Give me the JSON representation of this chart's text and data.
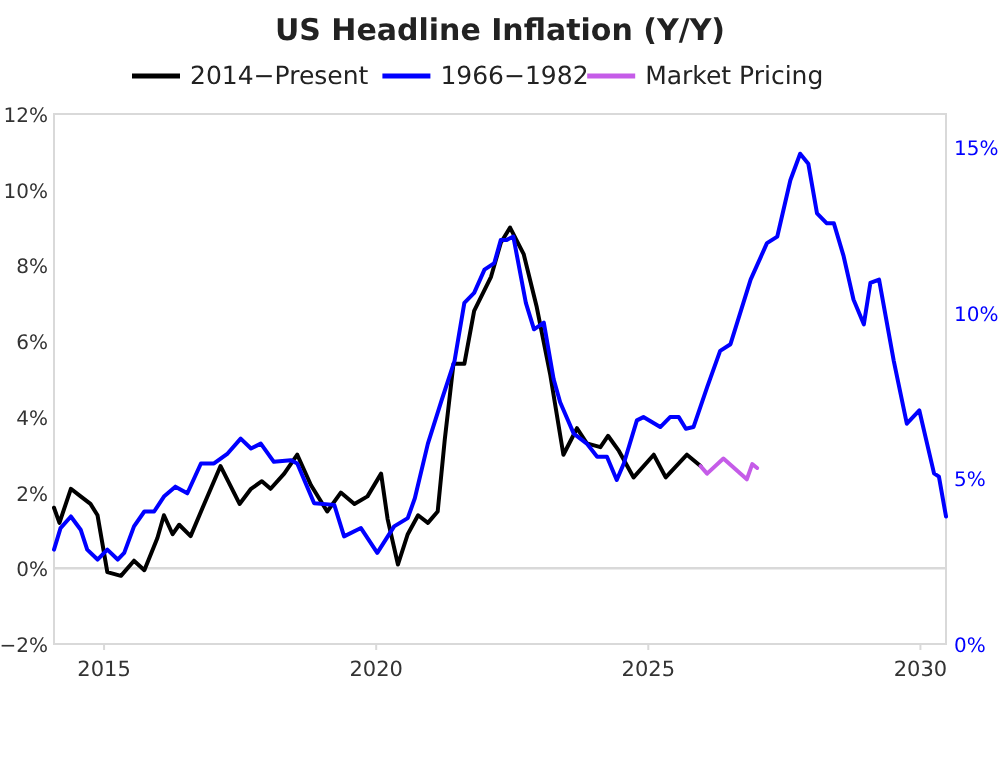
{
  "chart_data": {
    "type": "line",
    "title": "US Headline Inflation (Y/Y)",
    "legend": "top",
    "xlim": [
      2014.08,
      2030.47
    ],
    "xticks": [
      2015,
      2020,
      2025,
      2030
    ],
    "ylim": [
      -2,
      12
    ],
    "yticks": [
      {
        "value": -2,
        "label": "−2%"
      },
      {
        "value": 0,
        "label": "0%"
      },
      {
        "value": 2,
        "label": "2%"
      },
      {
        "value": 4,
        "label": "4%"
      },
      {
        "value": 6,
        "label": "6%"
      },
      {
        "value": 8,
        "label": "8%"
      },
      {
        "value": 10,
        "label": "10%"
      },
      {
        "value": 12,
        "label": "12%"
      }
    ],
    "y2lim": [
      0,
      16
    ],
    "y2ticks": [
      {
        "value": 0,
        "label": "0%"
      },
      {
        "value": 5,
        "label": "5%"
      },
      {
        "value": 10,
        "label": "10%"
      },
      {
        "value": 15,
        "label": "15%"
      }
    ],
    "ref_lines": [
      {
        "axis": "y",
        "value": 0,
        "color": "#d9d9d9"
      }
    ],
    "series": [
      {
        "name": "2014−Present",
        "color": "#000000",
        "x": [
          2014.08,
          2014.18,
          2014.39,
          2014.57,
          2014.75,
          2014.88,
          2015.06,
          2015.31,
          2015.55,
          2015.74,
          2015.98,
          2016.1,
          2016.26,
          2016.38,
          2016.59,
          2016.84,
          2017.14,
          2017.49,
          2017.7,
          2017.9,
          2018.06,
          2018.31,
          2018.55,
          2018.8,
          2019.1,
          2019.35,
          2019.6,
          2019.84,
          2020.09,
          2020.21,
          2020.4,
          2020.58,
          2020.77,
          2020.95,
          2021.13,
          2021.26,
          2021.42,
          2021.62,
          2021.8,
          2022.11,
          2022.29,
          2022.46,
          2022.71,
          2022.95,
          2023.2,
          2023.44,
          2023.69,
          2023.87,
          2024.12,
          2024.26,
          2024.46,
          2024.73,
          2025.1,
          2025.32,
          2025.71,
          2025.96
        ],
        "values": [
          1.6,
          1.2,
          2.1,
          1.9,
          1.7,
          1.4,
          -0.1,
          -0.2,
          0.2,
          -0.05,
          0.8,
          1.4,
          0.9,
          1.15,
          0.85,
          1.7,
          2.7,
          1.7,
          2.1,
          2.3,
          2.1,
          2.5,
          3.0,
          2.2,
          1.5,
          2.0,
          1.7,
          1.9,
          2.5,
          1.3,
          0.1,
          0.9,
          1.4,
          1.2,
          1.5,
          3.4,
          5.4,
          5.4,
          6.8,
          7.7,
          8.6,
          9.0,
          8.3,
          6.9,
          5.1,
          3.0,
          3.7,
          3.3,
          3.2,
          3.5,
          3.1,
          2.4,
          3.0,
          2.4,
          3.0,
          2.7
        ]
      },
      {
        "name": "1966−1982",
        "color": "#0000ff",
        "axis": "y2",
        "x": [
          2014.08,
          2014.2,
          2014.39,
          2014.57,
          2014.69,
          2014.88,
          2015.06,
          2015.25,
          2015.37,
          2015.55,
          2015.74,
          2015.92,
          2016.1,
          2016.31,
          2016.53,
          2016.78,
          2017.02,
          2017.27,
          2017.51,
          2017.7,
          2017.88,
          2018.12,
          2018.43,
          2018.55,
          2018.86,
          2019.23,
          2019.41,
          2019.72,
          2020.02,
          2020.33,
          2020.58,
          2020.71,
          2020.95,
          2021.2,
          2021.44,
          2021.62,
          2021.8,
          2021.99,
          2022.17,
          2022.29,
          2022.4,
          2022.52,
          2022.75,
          2022.9,
          2023.08,
          2023.26,
          2023.38,
          2023.63,
          2023.87,
          2024.06,
          2024.24,
          2024.42,
          2024.55,
          2024.79,
          2024.91,
          2025.22,
          2025.4,
          2025.56,
          2025.69,
          2025.83,
          2026.08,
          2026.32,
          2026.51,
          2026.88,
          2027.18,
          2027.37,
          2027.61,
          2027.79,
          2027.94,
          2028.1,
          2028.28,
          2028.41,
          2028.59,
          2028.77,
          2028.96,
          2029.08,
          2029.24,
          2029.51,
          2029.75,
          2029.98,
          2030.25,
          2030.34,
          2030.47
        ],
        "values": [
          2.85,
          3.5,
          3.85,
          3.45,
          2.85,
          2.55,
          2.85,
          2.55,
          2.75,
          3.55,
          4.0,
          4.0,
          4.45,
          4.75,
          4.55,
          5.45,
          5.45,
          5.75,
          6.2,
          5.9,
          6.05,
          5.5,
          5.55,
          5.45,
          4.25,
          4.2,
          3.25,
          3.5,
          2.75,
          3.55,
          3.8,
          4.4,
          6.05,
          7.35,
          8.55,
          10.3,
          10.6,
          11.3,
          11.5,
          12.2,
          12.2,
          12.3,
          10.3,
          9.5,
          9.7,
          8.0,
          7.3,
          6.35,
          6.05,
          5.65,
          5.65,
          4.95,
          5.45,
          6.75,
          6.85,
          6.55,
          6.85,
          6.85,
          6.5,
          6.55,
          7.75,
          8.85,
          9.05,
          11.0,
          12.1,
          12.3,
          14.0,
          14.8,
          14.5,
          13.0,
          12.7,
          12.7,
          11.7,
          10.4,
          9.65,
          10.9,
          11.0,
          8.55,
          6.65,
          7.05,
          5.15,
          5.05,
          3.85
        ]
      },
      {
        "name": "Market Pricing",
        "color": "#c55ce8",
        "x": [
          2025.96,
          2026.08,
          2026.38,
          2026.81,
          2026.91,
          2027.0
        ],
        "values": [
          2.7,
          2.5,
          2.9,
          2.35,
          2.75,
          2.65
        ]
      }
    ]
  }
}
